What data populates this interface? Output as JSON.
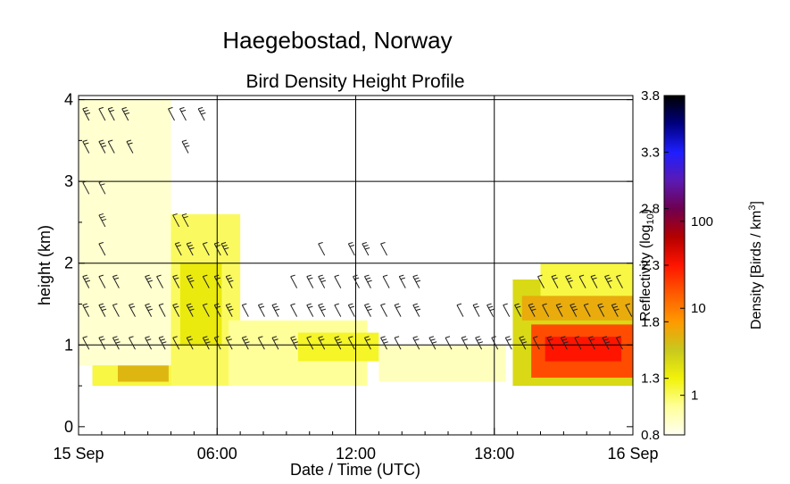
{
  "suptitle": "Haegebostad, Norway",
  "chart_data": {
    "type": "heatmap",
    "title": "Bird Density Height Profile",
    "xlabel": "Date / Time (UTC)",
    "ylabel": "height (km)",
    "x_range_hours": [
      0,
      24
    ],
    "ylim": [
      -0.1,
      4.05
    ],
    "x_ticks": [
      {
        "hour": 0,
        "label": "15 Sep"
      },
      {
        "hour": 6,
        "label": "06:00"
      },
      {
        "hour": 12,
        "label": "12:00"
      },
      {
        "hour": 18,
        "label": "18:00"
      },
      {
        "hour": 24,
        "label": "16 Sep"
      }
    ],
    "y_ticks": [
      0,
      1,
      2,
      3,
      4
    ],
    "grid": true,
    "colorbar": {
      "left_label": "Reflectivity (log10)",
      "right_label": "Density [Birds / km3]",
      "reflectivity_ticks": [
        0.8,
        1.3,
        1.8,
        2.3,
        2.8,
        3.3,
        3.8
      ],
      "density_ticks": [
        {
          "value": 1,
          "label": "1"
        },
        {
          "value": 10,
          "label": "10"
        },
        {
          "value": 100,
          "label": "100"
        }
      ],
      "range": [
        0.8,
        3.8
      ],
      "colors": [
        "#fffff2",
        "#ffff9a",
        "#f2f20a",
        "#c8c81e",
        "#ff9a00",
        "#ff5a00",
        "#ff1400",
        "#b40000",
        "#6e0050",
        "#5a1ab4",
        "#1e1eff",
        "#000080",
        "#000000"
      ]
    },
    "density_blocks": [
      {
        "t0": 0.6,
        "t1": 4.0,
        "h0": 0.5,
        "h1": 1.2,
        "level": 1.2
      },
      {
        "t0": 1.7,
        "t1": 3.9,
        "h0": 0.55,
        "h1": 0.75,
        "level": 1.65
      },
      {
        "t0": 0.0,
        "t1": 4.0,
        "h0": 0.75,
        "h1": 4.0,
        "level": 0.9
      },
      {
        "t0": 4.0,
        "t1": 7.0,
        "h0": 0.5,
        "h1": 2.6,
        "level": 1.15
      },
      {
        "t0": 4.4,
        "t1": 6.2,
        "h0": 1.0,
        "h1": 2.0,
        "level": 1.35
      },
      {
        "t0": 6.5,
        "t1": 12.5,
        "h0": 0.5,
        "h1": 1.3,
        "level": 1.05
      },
      {
        "t0": 9.5,
        "t1": 13.0,
        "h0": 0.8,
        "h1": 1.15,
        "level": 1.25
      },
      {
        "t0": 13.0,
        "t1": 18.5,
        "h0": 0.55,
        "h1": 1.0,
        "level": 0.95
      },
      {
        "t0": 18.8,
        "t1": 24.0,
        "h0": 0.5,
        "h1": 1.8,
        "level": 1.45
      },
      {
        "t0": 20.0,
        "t1": 24.0,
        "h0": 1.5,
        "h1": 2.0,
        "level": 1.2
      },
      {
        "t0": 19.2,
        "t1": 24.0,
        "h0": 1.3,
        "h1": 1.6,
        "level": 1.7
      },
      {
        "t0": 19.6,
        "t1": 24.0,
        "h0": 0.6,
        "h1": 1.25,
        "level": 2.1
      },
      {
        "t0": 20.2,
        "t1": 23.5,
        "h0": 0.8,
        "h1": 1.1,
        "level": 2.3
      }
    ],
    "wind_barb_rows": [
      {
        "height": 3.8,
        "hours": [
          0.3,
          1.0,
          1.4,
          2.0,
          4.0,
          4.5,
          5.3
        ]
      },
      {
        "height": 3.4,
        "hours": [
          0.3,
          1.0,
          1.4,
          2.2,
          4.6
        ]
      },
      {
        "height": 2.9,
        "hours": [
          0.3,
          1.0
        ]
      },
      {
        "height": 2.5,
        "hours": [
          1.0,
          4.2,
          4.6
        ]
      },
      {
        "height": 2.15,
        "hours": [
          1.0,
          4.3,
          4.8,
          5.5,
          6.0,
          6.3,
          10.5,
          11.8,
          12.4,
          13.2
        ]
      },
      {
        "height": 1.75,
        "hours": [
          0.3,
          1.0,
          1.6,
          3.0,
          3.5,
          4.2,
          4.8,
          5.5,
          6.0,
          6.5,
          9.3,
          10.0,
          10.5,
          11.2,
          12.0,
          12.5,
          13.3,
          14.0,
          14.6,
          20.0,
          20.6,
          21.2,
          21.8,
          22.3,
          22.9,
          23.4
        ]
      },
      {
        "height": 1.4,
        "hours": [
          0.3,
          1.0,
          1.6,
          2.3,
          3.0,
          3.6,
          4.2,
          4.8,
          5.5,
          6.0,
          6.5,
          7.2,
          7.9,
          8.5,
          9.3,
          10.0,
          10.5,
          11.2,
          11.8,
          12.5,
          13.2,
          13.8,
          14.6,
          16.5,
          17.2,
          17.8,
          18.5,
          19.0,
          19.6,
          20.2,
          20.8,
          21.4,
          22.0,
          22.6,
          23.2,
          23.8
        ]
      },
      {
        "height": 1.0,
        "hours": [
          0.3,
          1.0,
          1.6,
          2.3,
          3.0,
          3.6,
          4.2,
          4.8,
          5.5,
          6.0,
          6.5,
          7.2,
          7.9,
          8.5,
          9.3,
          10.0,
          10.5,
          11.2,
          11.8,
          12.5,
          13.2,
          13.8,
          14.6,
          15.3,
          16.0,
          16.7,
          17.3,
          18.0,
          18.6,
          19.2,
          19.8,
          20.4,
          21.0,
          21.6,
          22.2,
          22.8,
          23.4
        ]
      }
    ]
  }
}
